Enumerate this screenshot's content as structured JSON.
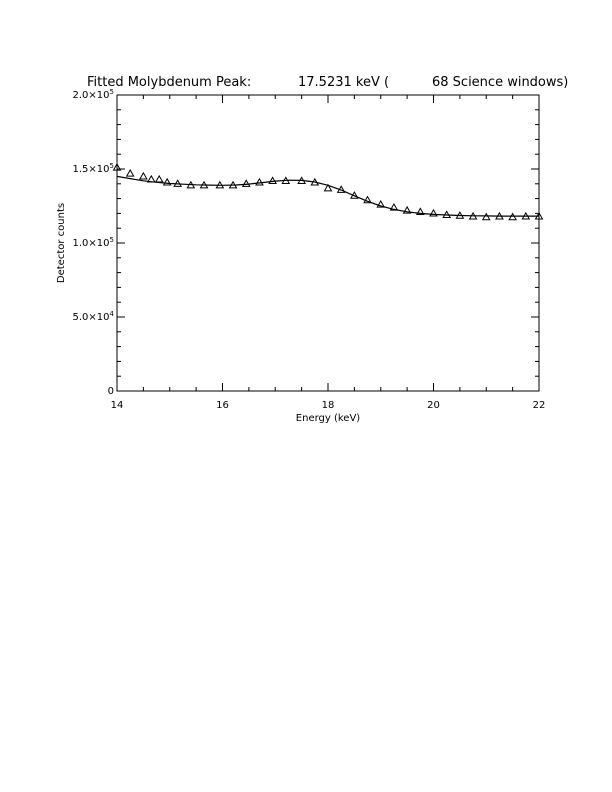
{
  "chart_data": {
    "type": "scatter",
    "title_parts": {
      "label": "Fitted Molybdenum Peak:",
      "energy": "17.5231 keV (",
      "windows": "68 Science windows)"
    },
    "xlabel": "Energy (keV)",
    "ylabel": "Detector counts",
    "xlim": [
      14,
      22
    ],
    "ylim": [
      0,
      200000
    ],
    "x_ticks": [
      {
        "value": 14,
        "label": "14"
      },
      {
        "value": 16,
        "label": "16"
      },
      {
        "value": 18,
        "label": "18"
      },
      {
        "value": 20,
        "label": "20"
      },
      {
        "value": 22,
        "label": "22"
      }
    ],
    "y_ticks": [
      {
        "value": 0,
        "mantissa": "0",
        "exponent": ""
      },
      {
        "value": 50000,
        "mantissa": "5.0×10",
        "exponent": "4"
      },
      {
        "value": 100000,
        "mantissa": "1.0×10",
        "exponent": "5"
      },
      {
        "value": 150000,
        "mantissa": "1.5×10",
        "exponent": "5"
      },
      {
        "value": 200000,
        "mantissa": "2.0×10",
        "exponent": "5"
      }
    ],
    "series": [
      {
        "marker": "triangle",
        "x": [
          14.0,
          14.25,
          14.5,
          14.65,
          14.8,
          14.95,
          15.15,
          15.4,
          15.65,
          15.95,
          16.2,
          16.45,
          16.7,
          16.95,
          17.2,
          17.5,
          17.75,
          18.0,
          18.25,
          18.5,
          18.75,
          19.0,
          19.25,
          19.5,
          19.75,
          20.0,
          20.25,
          20.5,
          20.75,
          21.0,
          21.25,
          21.5,
          21.75,
          22.0
        ],
        "y": [
          151000,
          147000,
          145000,
          143000,
          143000,
          141000,
          140000,
          139000,
          139000,
          139000,
          139000,
          140000,
          141000,
          142000,
          142000,
          142000,
          141000,
          137000,
          136000,
          132000,
          129000,
          126000,
          124000,
          122000,
          121000,
          120000,
          119000,
          118500,
          118000,
          117500,
          118000,
          117500,
          118000,
          118000
        ]
      },
      {
        "style": "line",
        "x": [
          14.0,
          14.25,
          14.5,
          14.75,
          15.0,
          15.25,
          15.5,
          15.75,
          16.0,
          16.25,
          16.5,
          16.75,
          17.0,
          17.25,
          17.5,
          17.75,
          18.0,
          18.25,
          18.5,
          18.75,
          19.0,
          19.25,
          19.5,
          19.75,
          20.0,
          20.25,
          20.5,
          20.75,
          21.0,
          21.25,
          21.5,
          21.75,
          22.0
        ],
        "y": [
          145000,
          143500,
          142000,
          141000,
          140200,
          139700,
          139300,
          139100,
          139000,
          139200,
          139800,
          140800,
          141800,
          142400,
          142300,
          141200,
          139000,
          135800,
          131900,
          128200,
          125000,
          122700,
          121100,
          120000,
          119300,
          118900,
          118600,
          118400,
          118300,
          118200,
          118200,
          118200,
          118200
        ]
      }
    ]
  }
}
